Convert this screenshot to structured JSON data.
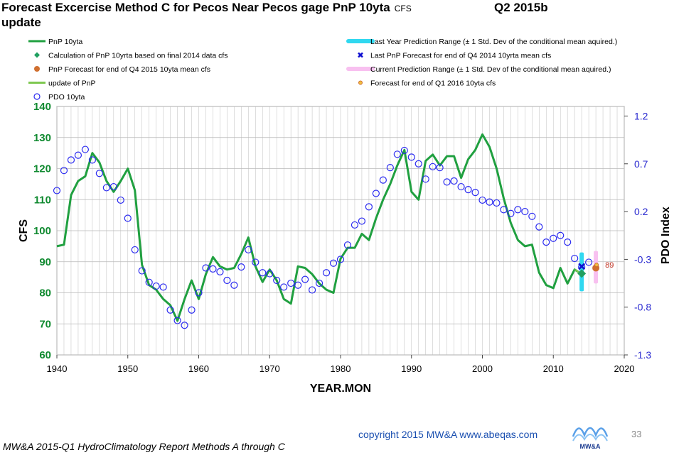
{
  "header": {
    "title": "Forecast Excercise  Method C for Pecos Near Pecos gage PnP 10yta",
    "title_unit": "CFS",
    "title_line2": "update",
    "quarter": "Q2 2015b"
  },
  "footer": {
    "report": "MW&A 2015-Q1 HydroClimatology Report Methods A through C",
    "copyright": "copyright 2015   MW&A www.abeqas.com",
    "page": "33",
    "logo_text": "MW&A"
  },
  "colors": {
    "pnp": "#20a040",
    "update": "#7ec850",
    "pdo": "#2a2af0",
    "calc": "#20a060",
    "forecast": "#d07030",
    "last_range": "#30d8f0",
    "current_range": "#f8c0f0",
    "last_forecast": "#1010d0",
    "grid": "#c8c8c8",
    "left_axis": "#108a30",
    "right_axis": "#2a2ad0"
  },
  "chart_data": {
    "type": "line",
    "xlabel": "YEAR.MON",
    "ylabel": "CFS",
    "y2label": "PDO Index",
    "xlim": [
      1940,
      2020
    ],
    "ylim": [
      60,
      140
    ],
    "y2lim": [
      -1.3,
      1.3
    ],
    "xticks": [
      1940,
      1950,
      1960,
      1970,
      1980,
      1990,
      2000,
      2010,
      2020
    ],
    "yticks": [
      60,
      70,
      80,
      90,
      100,
      110,
      120,
      130,
      140
    ],
    "y2ticks": [
      -1.3,
      -0.8,
      -0.3,
      0.2,
      0.7,
      1.2
    ],
    "grid": true,
    "legend": {
      "left": [
        {
          "label": "PnP 10yta",
          "kind": "line",
          "color_key": "pnp"
        },
        {
          "label": "Calculation of PnP 10yrta based on final 2014 data cfs",
          "kind": "diamond",
          "color_key": "calc"
        },
        {
          "label": "PnP Forecast for end of Q4 2015 10yta mean  cfs",
          "kind": "dot",
          "color_key": "forecast"
        },
        {
          "label": "update of PnP",
          "kind": "line",
          "color_key": "update"
        },
        {
          "label": "PDO 10yta",
          "kind": "circle",
          "color_key": "pdo"
        }
      ],
      "right": [
        {
          "label": "Last Year Prediction Range  (± 1 Std. Dev of the conditional mean aquired.)",
          "kind": "band",
          "color_key": "last_range"
        },
        {
          "label": "Last PnP Forecast for end of Q4 2014 10yrta mean cfs",
          "kind": "x",
          "color_key": "last_forecast"
        },
        {
          "label": "Current Prediction Range  (± 1 Std. Dev of the conditional mean aquired.)",
          "kind": "band",
          "color_key": "current_range"
        },
        {
          "label": "Forecast for end of Q1 2016 10yta cfs",
          "kind": "smalldot",
          "color_key": "forecast"
        }
      ]
    },
    "series": [
      {
        "name": "PnP 10yta",
        "axis": "left",
        "x": [
          1940,
          1941,
          1942,
          1943,
          1944,
          1945,
          1946,
          1947,
          1948,
          1949,
          1950,
          1951,
          1952,
          1953,
          1954,
          1955,
          1956,
          1957,
          1958,
          1959,
          1960,
          1961,
          1962,
          1963,
          1964,
          1965,
          1966,
          1967,
          1968,
          1969,
          1970,
          1971,
          1972,
          1973,
          1974,
          1975,
          1976,
          1977,
          1978,
          1979,
          1980,
          1981,
          1982,
          1983,
          1984,
          1985,
          1986,
          1987,
          1988,
          1989,
          1990,
          1991,
          1992,
          1993,
          1994,
          1995,
          1996,
          1997,
          1998,
          1999,
          2000,
          2001,
          2002,
          2003,
          2004,
          2005,
          2006,
          2007,
          2008,
          2009,
          2010,
          2011,
          2012,
          2013,
          2014
        ],
        "values": [
          95,
          95.5,
          111.5,
          116,
          117.5,
          125,
          122,
          116,
          112.5,
          116,
          120,
          113,
          89,
          82.5,
          81,
          78,
          76,
          71,
          78,
          84,
          78,
          86,
          91.5,
          88.5,
          87.5,
          88,
          92.5,
          97.8,
          88.5,
          83.5,
          87.5,
          84,
          78,
          76.5,
          88.5,
          88,
          86,
          83,
          81,
          80,
          91,
          94.5,
          94.5,
          99,
          97,
          104,
          110,
          115,
          121,
          126,
          112.5,
          110,
          122.5,
          124.5,
          121,
          124,
          124,
          117,
          123,
          126,
          131,
          127,
          120,
          110.5,
          102.5,
          97,
          95,
          95.5,
          86.5,
          82.5,
          81.5,
          88,
          83,
          87.5,
          86
        ]
      },
      {
        "name": "PDO 10yta",
        "axis": "right",
        "x": [
          1940,
          1941,
          1942,
          1943,
          1944,
          1945,
          1946,
          1947,
          1948,
          1949,
          1950,
          1951,
          1952,
          1953,
          1954,
          1955,
          1956,
          1957,
          1958,
          1959,
          1960,
          1961,
          1962,
          1963,
          1964,
          1965,
          1966,
          1967,
          1968,
          1969,
          1970,
          1971,
          1972,
          1973,
          1974,
          1975,
          1976,
          1977,
          1978,
          1979,
          1980,
          1981,
          1982,
          1983,
          1984,
          1985,
          1986,
          1987,
          1988,
          1989,
          1990,
          1991,
          1992,
          1993,
          1994,
          1995,
          1996,
          1997,
          1998,
          1999,
          2000,
          2001,
          2002,
          2003,
          2004,
          2005,
          2006,
          2007,
          2008,
          2009,
          2010,
          2011,
          2012,
          2013,
          2014,
          2015
        ],
        "values": [
          0.42,
          0.63,
          0.74,
          0.79,
          0.85,
          0.74,
          0.6,
          0.45,
          0.46,
          0.32,
          0.13,
          -0.2,
          -0.42,
          -0.54,
          -0.58,
          -0.59,
          -0.83,
          -0.94,
          -0.99,
          -0.83,
          -0.65,
          -0.39,
          -0.4,
          -0.43,
          -0.52,
          -0.57,
          -0.38,
          -0.2,
          -0.33,
          -0.44,
          -0.45,
          -0.52,
          -0.59,
          -0.55,
          -0.57,
          -0.51,
          -0.62,
          -0.55,
          -0.44,
          -0.34,
          -0.3,
          -0.15,
          0.06,
          0.1,
          0.25,
          0.39,
          0.53,
          0.66,
          0.8,
          0.84,
          0.77,
          0.7,
          0.54,
          0.67,
          0.66,
          0.51,
          0.52,
          0.46,
          0.43,
          0.4,
          0.32,
          0.3,
          0.29,
          0.22,
          0.18,
          0.22,
          0.2,
          0.15,
          0.04,
          -0.12,
          -0.08,
          -0.05,
          -0.12,
          -0.29,
          -0.38,
          -0.33
        ]
      }
    ],
    "markers": {
      "update_of_pnp": {
        "x": [
          2013,
          2014
        ],
        "values": [
          87.5,
          86
        ]
      },
      "calculation_2014": {
        "x": 2014,
        "value": 86.2
      },
      "last_pnp_forecast_q4_2014": {
        "x": 2014,
        "value": 88.5
      },
      "pnp_forecast_q4_2015": {
        "x": 2016,
        "value": 88
      },
      "forecast_q1_2016": {
        "x": 2016,
        "value": 89,
        "label": "89"
      },
      "last_year_range": {
        "x": 2014,
        "low": 80.5,
        "high": 93
      },
      "current_range": {
        "x": 2016,
        "low": 83,
        "high": 93.5
      }
    }
  }
}
